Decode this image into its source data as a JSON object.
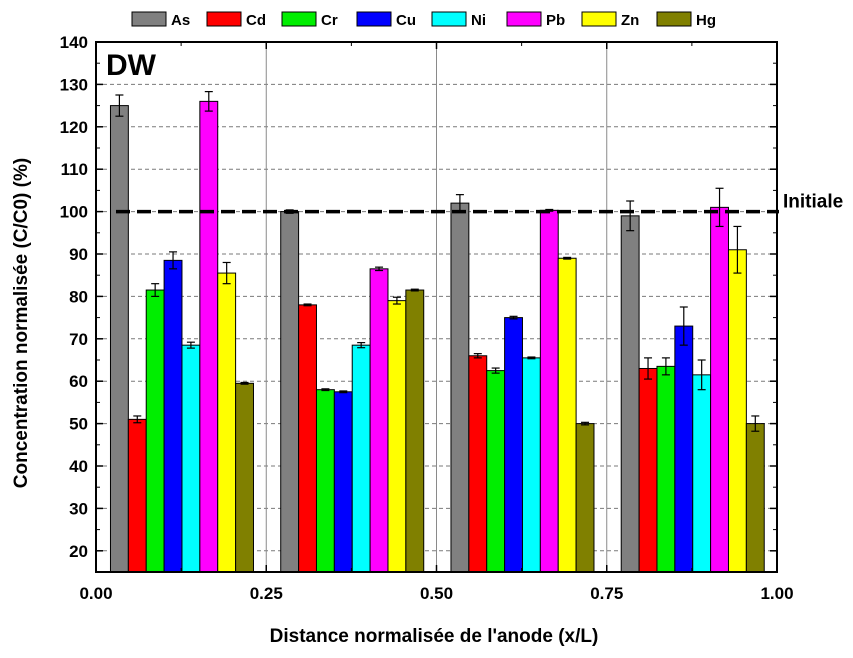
{
  "chart_data": {
    "type": "bar",
    "panel_label": "DW",
    "xlabel": "Distance normalisée de l'anode (x/L)",
    "ylabel": "Concentration normalisée (C/C0) (%)",
    "xlim": [
      0.0,
      1.0
    ],
    "ylim": [
      15,
      140
    ],
    "x_ticks": [
      "0.00",
      "0.25",
      "0.50",
      "0.75",
      "1.00"
    ],
    "y_ticks": [
      "20",
      "30",
      "40",
      "50",
      "60",
      "70",
      "80",
      "90",
      "100",
      "110",
      "120",
      "130",
      "140"
    ],
    "grid": "dashed horizontal, solid vertical at 0.25 / 0.50 / 0.75",
    "legend_position": "top",
    "groups": [
      "0.00–0.25",
      "0.25–0.50",
      "0.50–0.75",
      "0.75–1.00"
    ],
    "reference_line": {
      "value": 100,
      "label": "Initiale",
      "style": "dashed"
    },
    "series": [
      {
        "name": "As",
        "color": "#808080",
        "values": [
          125,
          100,
          102,
          99
        ],
        "errors": [
          2.5,
          0.4,
          2,
          3.5
        ]
      },
      {
        "name": "Cd",
        "color": "#ff0000",
        "values": [
          51,
          78,
          66,
          63
        ],
        "errors": [
          0.8,
          0.2,
          0.5,
          2.5
        ]
      },
      {
        "name": "Cr",
        "color": "#00ee00",
        "values": [
          81.5,
          58,
          62.5,
          63.5
        ],
        "errors": [
          1.5,
          0.2,
          0.6,
          2
        ]
      },
      {
        "name": "Cu",
        "color": "#0000ff",
        "values": [
          88.5,
          57.5,
          75,
          73
        ],
        "errors": [
          2,
          0.2,
          0.3,
          4.5
        ]
      },
      {
        "name": "Ni",
        "color": "#00ffff",
        "values": [
          68.5,
          68.5,
          65.5,
          61.5
        ],
        "errors": [
          0.7,
          0.6,
          0.2,
          3.5
        ]
      },
      {
        "name": "Pb",
        "color": "#ff00ff",
        "values": [
          126,
          86.5,
          100.3,
          101
        ],
        "errors": [
          2.3,
          0.4,
          0.2,
          4.5
        ]
      },
      {
        "name": "Zn",
        "color": "#ffff00",
        "values": [
          85.5,
          79,
          89,
          91
        ],
        "errors": [
          2.5,
          0.8,
          0.2,
          5.5
        ]
      },
      {
        "name": "Hg",
        "color": "#808000",
        "values": [
          59.5,
          81.5,
          50,
          50
        ],
        "errors": [
          0.2,
          0.2,
          0.3,
          1.8
        ]
      }
    ]
  }
}
